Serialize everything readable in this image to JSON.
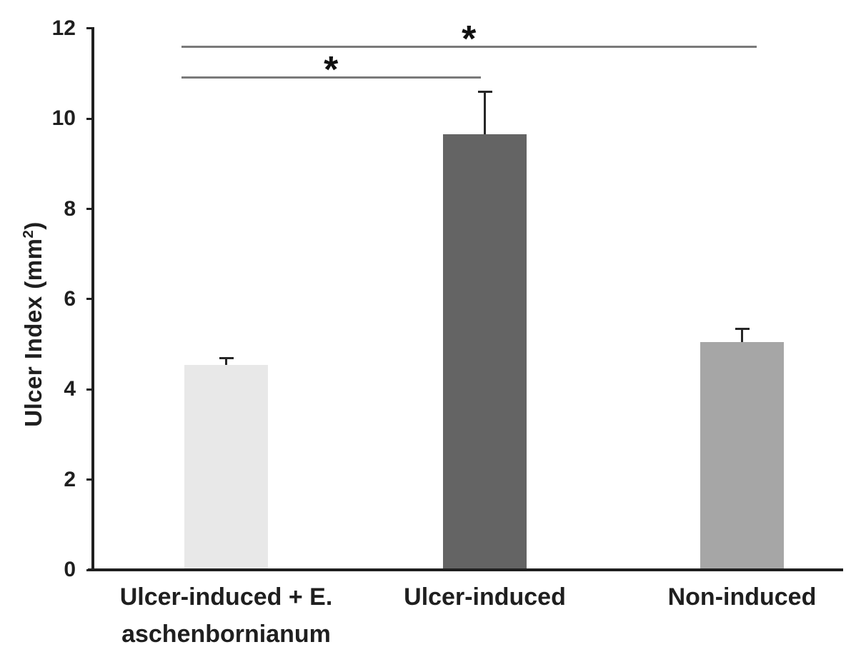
{
  "chart_data": {
    "type": "bar",
    "title": "",
    "xlabel": "",
    "ylabel": "Ulcer Index (mm²)",
    "ylabel_parts": {
      "pre": "Ulcer Index (mm",
      "sup": "2",
      "post": ")"
    },
    "ylim": [
      0,
      12
    ],
    "yticks": [
      0,
      2,
      4,
      6,
      8,
      10,
      12
    ],
    "grid": false,
    "legend_position": "none",
    "categories": [
      "Ulcer-induced + E. aschenbornianum",
      "Ulcer-induced",
      "Non-induced"
    ],
    "bars": [
      {
        "label_lines": [
          "Ulcer-induced + E.",
          "aschenbornianum"
        ],
        "value": 4.55,
        "error_up": 0.15,
        "fill": "#e8e8e8"
      },
      {
        "label_lines": [
          "Ulcer-induced"
        ],
        "value": 9.65,
        "error_up": 0.95,
        "fill": "#646464"
      },
      {
        "label_lines": [
          "Non-induced"
        ],
        "value": 5.05,
        "error_up": 0.3,
        "fill": "#a6a6a6"
      }
    ],
    "significance": [
      {
        "from_index": 0,
        "to_index": 1,
        "label": "*",
        "line_y": 10.94
      },
      {
        "from_index": 0,
        "to_index": 2,
        "label": "*",
        "line_y": 11.62
      }
    ],
    "colors": {
      "axis": "#1f1f1f",
      "text": "#1f1f1f",
      "sig_line": "#7a7a7a",
      "error_bar": "#262626"
    }
  }
}
